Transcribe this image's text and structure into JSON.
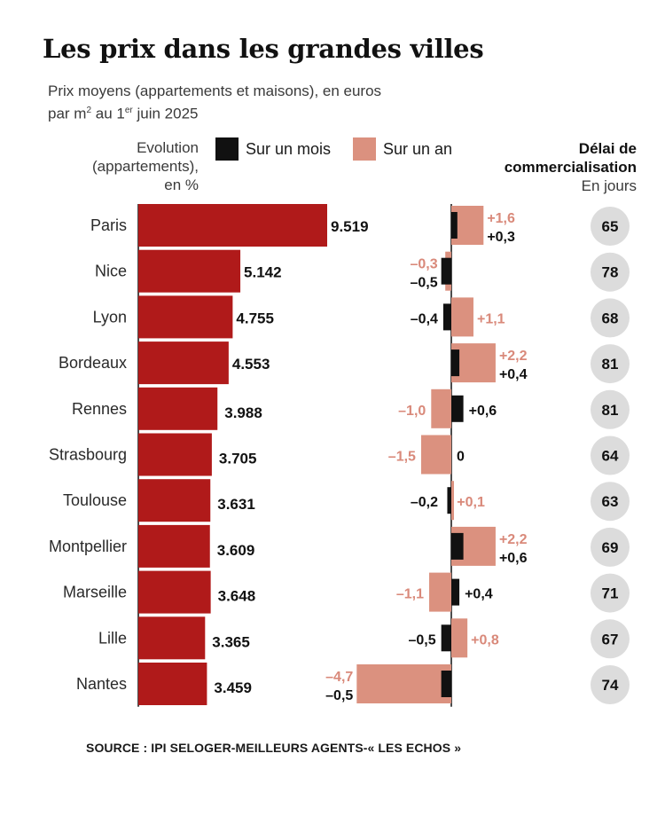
{
  "title": "Les prix dans les grandes villes",
  "subtitle_line1": "Prix moyens (appartements et maisons), en euros",
  "subtitle_line2_a": "par m",
  "subtitle_line2_sup1": "2",
  "subtitle_line2_b": " au 1",
  "subtitle_line2_sup2": "er",
  "subtitle_line2_c": " juin 2025",
  "evolution_label": [
    "Evolution",
    "(appartements),",
    "en %"
  ],
  "legend": {
    "month_label": "Sur un mois",
    "year_label": "Sur un an"
  },
  "delai_label": {
    "line1": "Délai de",
    "line2": "commercialisation",
    "line3": "En jours"
  },
  "source": "SOURCE : IPI SELOGER-MEILLEURS AGENTS-« LES ECHOS »",
  "colors": {
    "price_bar": "#b01a1a",
    "month_bar": "#111111",
    "year_bar": "#db917f",
    "year_text": "#d9897a",
    "delai_circle": "#dcdcdc"
  },
  "chart_data": {
    "type": "bar",
    "categories": [
      "Paris",
      "Nice",
      "Lyon",
      "Bordeaux",
      "Rennes",
      "Strasbourg",
      "Toulouse",
      "Montpellier",
      "Marseille",
      "Lille",
      "Nantes"
    ],
    "prices": [
      9519,
      5142,
      4755,
      4553,
      3988,
      3705,
      3631,
      3609,
      3648,
      3365,
      3459
    ],
    "price_labels": [
      "9.519",
      "5.142",
      "4.755",
      "4.553",
      "3.988",
      "3.705",
      "3.631",
      "3.609",
      "3.648",
      "3.365",
      "3.459"
    ],
    "month_change": [
      0.3,
      -0.5,
      -0.4,
      0.4,
      0.6,
      0,
      -0.2,
      0.6,
      0.4,
      -0.5,
      -0.5
    ],
    "month_labels": [
      "+0,3",
      "–0,5",
      "–0,4",
      "+0,4",
      "+0,6",
      "0",
      "–0,2",
      "+0,6",
      "+0,4",
      "–0,5",
      "–0,5"
    ],
    "year_change": [
      1.6,
      -0.3,
      1.1,
      2.2,
      -1.0,
      -1.5,
      0.1,
      2.2,
      -1.1,
      0.8,
      -4.7
    ],
    "year_labels": [
      "+1,6",
      "–0,3",
      "+1,1",
      "+2,2",
      "–1,0",
      "–1,5",
      "+0,1",
      "+2,2",
      "–1,1",
      "+0,8",
      "–4,7"
    ],
    "delai_days": [
      65,
      78,
      68,
      81,
      81,
      64,
      63,
      69,
      71,
      67,
      74
    ]
  }
}
